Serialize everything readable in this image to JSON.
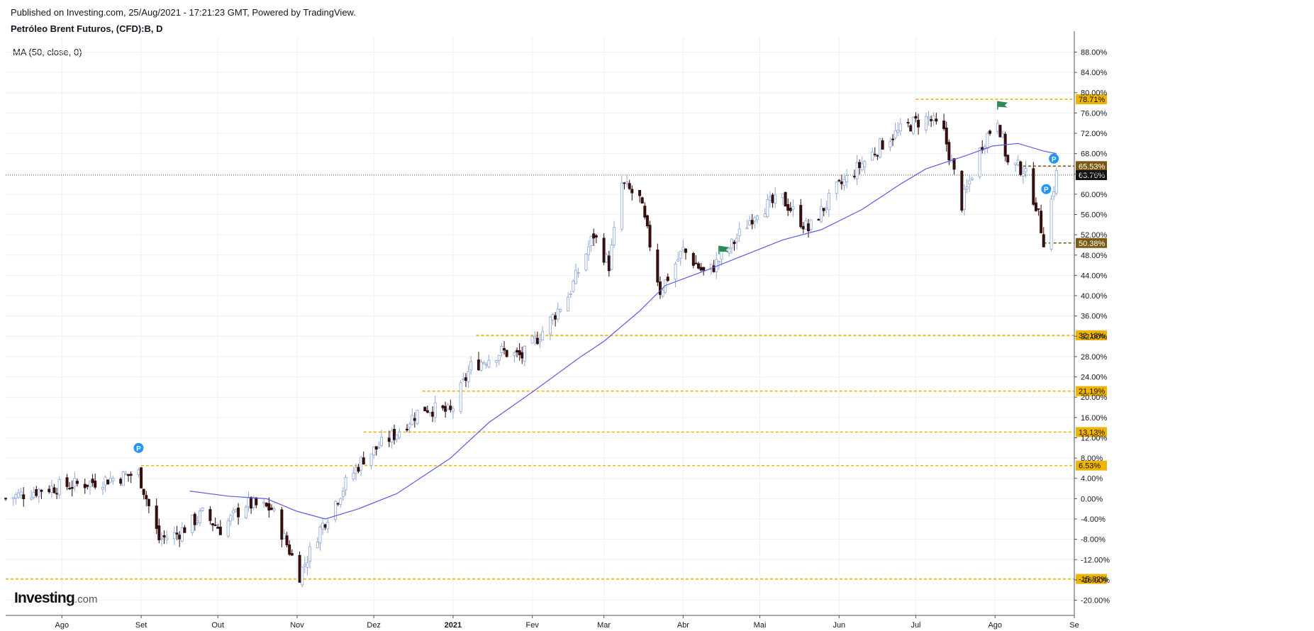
{
  "header": {
    "published": "Published on Investing.com, 25/Aug/2021 - 17:21:23 GMT, Powered by TradingView.",
    "instrument": "Petróleo Brent Futuros, (CFD):B, D",
    "indicator": "MA (50, close, 0)"
  },
  "logo": {
    "brand": "Investing",
    "domain": ".com"
  },
  "chart_data": {
    "type": "candlestick",
    "y_unit": "%",
    "ylim": [
      -23,
      91
    ],
    "y_ticks": [
      -20,
      -16,
      -12,
      -8,
      -4,
      0,
      4,
      8,
      12,
      16,
      20,
      24,
      28,
      32,
      36,
      40,
      44,
      48,
      52,
      56,
      60,
      64,
      68,
      72,
      76,
      80,
      84,
      88
    ],
    "x_labels": [
      "Ago",
      "Set",
      "Out",
      "Nov",
      "Dez",
      "2021",
      "Fev",
      "Mar",
      "Abr",
      "Mai",
      "Jun",
      "Jul",
      "Ago",
      "Se"
    ],
    "x_range": [
      "2020-07-10",
      "2021-09-01"
    ],
    "x_label_dates": [
      "2020-08-01",
      "2020-09-01",
      "2020-10-01",
      "2020-11-01",
      "2020-12-01",
      "2021-01-01",
      "2021-02-01",
      "2021-03-01",
      "2021-04-01",
      "2021-05-01",
      "2021-06-01",
      "2021-07-01",
      "2021-08-01",
      "2021-09-01"
    ],
    "grid": true,
    "price_path": [
      [
        "2020-07-10",
        0
      ],
      [
        "2020-07-25",
        2
      ],
      [
        "2020-08-10",
        3
      ],
      [
        "2020-08-31",
        5
      ],
      [
        "2020-09-08",
        -8
      ],
      [
        "2020-09-15",
        -7
      ],
      [
        "2020-09-25",
        -3
      ],
      [
        "2020-10-02",
        -6
      ],
      [
        "2020-10-12",
        -1
      ],
      [
        "2020-10-22",
        -2
      ],
      [
        "2020-10-28",
        -9
      ],
      [
        "2020-11-02",
        -15
      ],
      [
        "2020-11-10",
        -6
      ],
      [
        "2020-11-20",
        3
      ],
      [
        "2020-11-27",
        8
      ],
      [
        "2020-12-10",
        13
      ],
      [
        "2020-12-20",
        18
      ],
      [
        "2020-12-31",
        17
      ],
      [
        "2021-01-08",
        26
      ],
      [
        "2021-01-20",
        29
      ],
      [
        "2021-01-28",
        28
      ],
      [
        "2021-02-05",
        33
      ],
      [
        "2021-02-15",
        40
      ],
      [
        "2021-02-25",
        52
      ],
      [
        "2021-03-03",
        46
      ],
      [
        "2021-03-08",
        62
      ],
      [
        "2021-03-15",
        59
      ],
      [
        "2021-03-20",
        48
      ],
      [
        "2021-03-23",
        41
      ],
      [
        "2021-04-01",
        49
      ],
      [
        "2021-04-10",
        44
      ],
      [
        "2021-04-20",
        50
      ],
      [
        "2021-04-30",
        57
      ],
      [
        "2021-05-10",
        59
      ],
      [
        "2021-05-20",
        53
      ],
      [
        "2021-05-31",
        61
      ],
      [
        "2021-06-10",
        66
      ],
      [
        "2021-06-20",
        71
      ],
      [
        "2021-06-30",
        74
      ],
      [
        "2021-07-06",
        75
      ],
      [
        "2021-07-12",
        72
      ],
      [
        "2021-07-19",
        58
      ],
      [
        "2021-07-27",
        70
      ],
      [
        "2021-08-02",
        75
      ],
      [
        "2021-08-06",
        66
      ],
      [
        "2021-08-12",
        65
      ],
      [
        "2021-08-17",
        58
      ],
      [
        "2021-08-20",
        51
      ],
      [
        "2021-08-25",
        64
      ]
    ],
    "series": [
      {
        "name": "MA (50, close, 0)",
        "color": "#5b5be8",
        "points": [
          [
            "2020-09-20",
            1.5
          ],
          [
            "2020-10-05",
            0.5
          ],
          [
            "2020-10-20",
            0
          ],
          [
            "2020-11-01",
            -2.5
          ],
          [
            "2020-11-12",
            -4
          ],
          [
            "2020-11-25",
            -2
          ],
          [
            "2020-12-10",
            1
          ],
          [
            "2020-12-31",
            8
          ],
          [
            "2021-01-15",
            15
          ],
          [
            "2021-02-01",
            21
          ],
          [
            "2021-02-20",
            28
          ],
          [
            "2021-03-01",
            31
          ],
          [
            "2021-03-15",
            37
          ],
          [
            "2021-03-25",
            42
          ],
          [
            "2021-04-10",
            45
          ],
          [
            "2021-04-25",
            48
          ],
          [
            "2021-05-10",
            51
          ],
          [
            "2021-05-25",
            53
          ],
          [
            "2021-06-10",
            57
          ],
          [
            "2021-06-25",
            62
          ],
          [
            "2021-07-05",
            65
          ],
          [
            "2021-07-20",
            67.5
          ],
          [
            "2021-07-31",
            69.5
          ],
          [
            "2021-08-10",
            70
          ],
          [
            "2021-08-20",
            68.5
          ],
          [
            "2021-08-25",
            68
          ]
        ]
      }
    ],
    "horizontal_levels": [
      {
        "value": 78.71,
        "label": "78.71%",
        "style": "yellow",
        "from": "2021-07-01"
      },
      {
        "value": 65.53,
        "label": "65.53%",
        "style": "dark",
        "from": "2021-08-12"
      },
      {
        "value": 32.18,
        "label": "32.18%",
        "style": "yellow",
        "from": "2021-01-10"
      },
      {
        "value": 21.19,
        "label": "21.19%",
        "style": "yellow",
        "from": "2020-12-20"
      },
      {
        "value": 13.13,
        "label": "13.13%",
        "style": "yellow",
        "from": "2020-11-27"
      },
      {
        "value": 6.53,
        "label": "6.53%",
        "style": "yellow",
        "from": "2020-09-01"
      },
      {
        "value": 50.38,
        "label": "50.38%",
        "style": "dark",
        "from": "2021-08-20"
      },
      {
        "value": -15.82,
        "label": "-15.82%",
        "style": "yellow",
        "from": "2020-07-10"
      }
    ],
    "current": {
      "value": 63.76,
      "label": "63.76%"
    },
    "markers": [
      {
        "type": "P",
        "date": "2020-08-31",
        "value": 10
      },
      {
        "type": "P",
        "date": "2021-08-24",
        "value": 67
      },
      {
        "type": "P",
        "date": "2021-08-21",
        "value": 61
      },
      {
        "type": "flag",
        "date": "2021-04-15",
        "value": 49
      },
      {
        "type": "flag",
        "date": "2021-08-02",
        "value": 77.5
      }
    ],
    "colors": {
      "up": "#c9d6f0",
      "down": "#3a0f0f",
      "level": "#f0b400",
      "level_dark": "#7a5a12",
      "flag": "#2e8b57",
      "pin": "#2196f3"
    }
  }
}
